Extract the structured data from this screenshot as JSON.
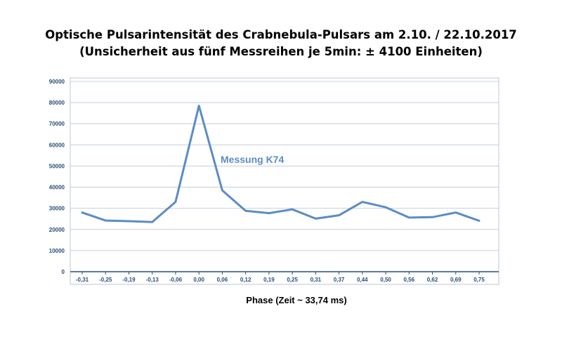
{
  "title_line1": "Optische Pulsarintensität des Crabnebula-Pulsars am 2.10. / 22.10.2017",
  "title_line2": "(Unsicherheit aus fünf Messreihen je 5min: ± 4100 Einheiten)",
  "chart_data": {
    "type": "line",
    "title": "Optische Pulsarintensität des Crabnebula-Pulsars am 2.10. / 22.10.2017",
    "subtitle": "(Unsicherheit aus fünf Messreihen je 5min: ± 4100 Einheiten)",
    "xlabel": "Phase (Zeit ~ 33,74 ms)",
    "ylabel": "",
    "ylim": [
      0,
      90000
    ],
    "yticks": [
      "0",
      "10000",
      "20000",
      "30000",
      "40000",
      "50000",
      "60000",
      "70000",
      "80000",
      "90000"
    ],
    "categories": [
      "-0,31",
      "-0,25",
      "-0,19",
      "-0,13",
      "-0,06",
      "0,00",
      "0,06",
      "0,12",
      "0,19",
      "0,25",
      "0,31",
      "0,37",
      "0,44",
      "0,50",
      "0,56",
      "0,62",
      "0,69",
      "0,75"
    ],
    "series": [
      {
        "name": "Messung K74",
        "color": "#5b8cc5",
        "values": [
          28000,
          24200,
          23900,
          23500,
          33000,
          78500,
          38500,
          28800,
          27700,
          29500,
          25100,
          26700,
          33000,
          30500,
          25600,
          25800,
          28000,
          24100
        ]
      }
    ],
    "grid": true,
    "legend": "inline-label"
  }
}
